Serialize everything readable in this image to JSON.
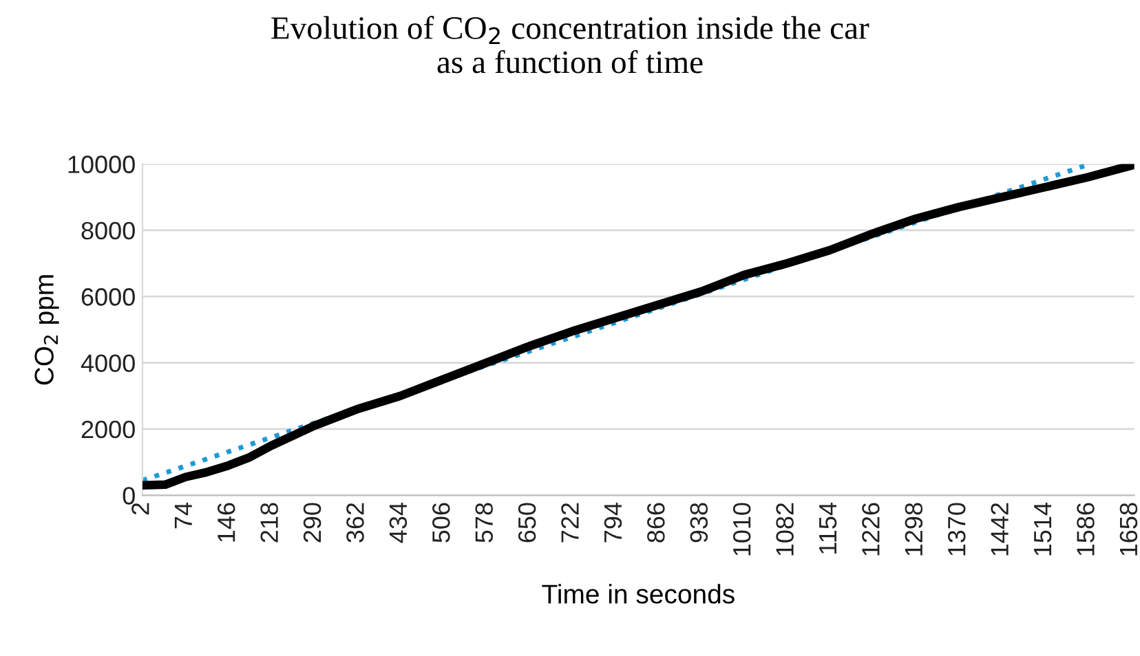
{
  "chart_data": {
    "type": "line",
    "title": "Evolution of CO$_{2}$ concentration inside the car\nas a function of time",
    "xlabel": "Time in seconds",
    "ylabel": "CO$_{2}$ ppm",
    "xlim": [
      2,
      1664
    ],
    "xticks": [
      2,
      74,
      146,
      218,
      290,
      362,
      434,
      506,
      578,
      650,
      722,
      794,
      866,
      938,
      1010,
      1082,
      1154,
      1226,
      1298,
      1370,
      1442,
      1514,
      1586,
      1658
    ],
    "ylim": [
      0,
      10000
    ],
    "yticks": [
      0,
      2000,
      4000,
      6000,
      8000,
      10000
    ],
    "grid": "y",
    "legend": false,
    "marker": "none",
    "series": [
      {
        "color": "#000000",
        "line_style": "solid",
        "x": [
          2,
          40,
          74,
          110,
          146,
          182,
          218,
          254,
          290,
          362,
          434,
          506,
          578,
          650,
          722,
          794,
          866,
          938,
          1010,
          1082,
          1154,
          1226,
          1298,
          1370,
          1442,
          1514,
          1586,
          1658
        ],
        "values": [
          300,
          320,
          550,
          700,
          900,
          1150,
          1500,
          1800,
          2100,
          2600,
          3000,
          3500,
          4000,
          4500,
          4950,
          5350,
          5750,
          6150,
          6650,
          7000,
          7400,
          7900,
          8350,
          8700,
          9000,
          9300,
          9600,
          9950
        ]
      },
      {
        "type": "line",
        "color": "#1f9ad6",
        "line_style": "dotted",
        "x": [
          2,
          1590
        ],
        "values": [
          450,
          10000
        ]
      }
    ]
  }
}
